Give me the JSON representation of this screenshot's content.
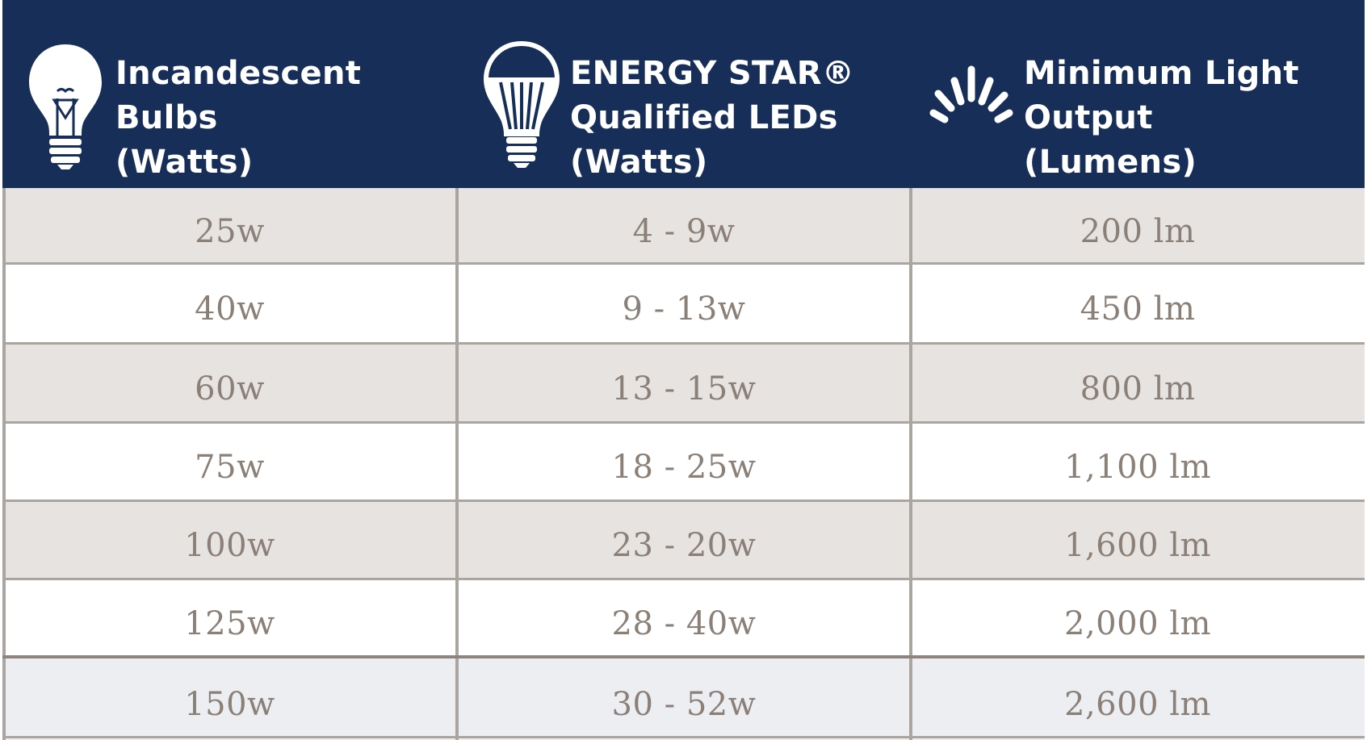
{
  "colors": {
    "header_bg": "#172e58",
    "header_text": "#ffffff",
    "row_shaded": "#e6e3e0",
    "row_white": "#ffffff",
    "row_last": "#eceef1",
    "cell_text": "#8a8078",
    "grid_line": "#aaa59f"
  },
  "header": {
    "columns": [
      {
        "icon": "incandescent-bulb-icon",
        "lines": [
          "Incandescent",
          "Bulbs",
          "(Watts)"
        ]
      },
      {
        "icon": "led-bulb-icon",
        "lines": [
          "ENERGY STAR®",
          "Qualified LEDs",
          "(Watts)"
        ]
      },
      {
        "icon": "light-rays-icon",
        "lines": [
          "Minimum Light",
          "Output",
          "(Lumens)"
        ]
      }
    ]
  },
  "rows": [
    {
      "cells": [
        "25w",
        "4 - 9w",
        "200 lm"
      ]
    },
    {
      "cells": [
        "40w",
        "9 - 13w",
        "450 lm"
      ]
    },
    {
      "cells": [
        "60w",
        "13 - 15w",
        "800 lm"
      ]
    },
    {
      "cells": [
        "75w",
        "18 - 25w",
        "1,100 lm"
      ]
    },
    {
      "cells": [
        "100w",
        "23 - 20w",
        "1,600 lm"
      ]
    },
    {
      "cells": [
        "125w",
        "28 - 40w",
        "2,000 lm"
      ]
    },
    {
      "cells": [
        "150w",
        "30 - 52w",
        "2,600 lm"
      ]
    }
  ]
}
